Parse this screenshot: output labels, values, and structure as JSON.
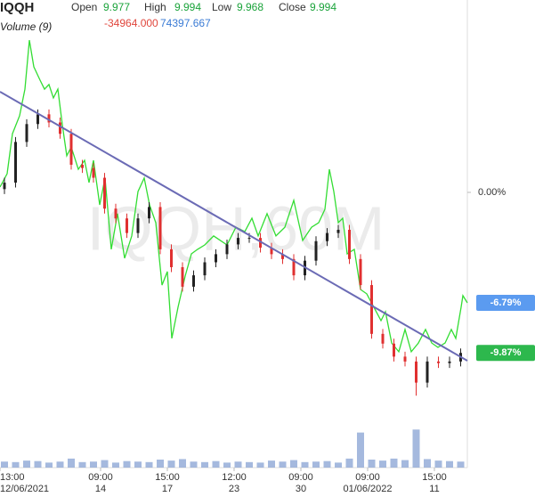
{
  "chart_data": {
    "type": "candlestick",
    "title": "IQQH",
    "watermark": "IQQH,60M",
    "ohlc_legend": [
      {
        "label": "Open",
        "value": 9.977
      },
      {
        "label": "High",
        "value": 9.994
      },
      {
        "label": "Low",
        "value": 9.968
      },
      {
        "label": "Close",
        "value": 9.994
      }
    ],
    "indicator": {
      "name": "Volume (9)",
      "values": [
        {
          "value": -34964,
          "label": "-34964.000"
        },
        74397.667
      ],
      "colors": [
        "#e0463c",
        "#3a7bd5"
      ]
    },
    "xlim": [
      0,
      105
    ],
    "xticks": [
      {
        "value": 0,
        "label": "13:00",
        "date": "12/06/2021"
      },
      {
        "value": 22.6,
        "label": "09:00",
        "date": "14"
      },
      {
        "value": 37.6,
        "label": "15:00",
        "date": "17"
      },
      {
        "value": 52.6,
        "label": "12:00",
        "date": "23"
      },
      {
        "value": 67.6,
        "label": "09:00",
        "date": "30"
      },
      {
        "value": 82.6,
        "label": "09:00",
        "date": "01/06/2022"
      },
      {
        "value": 97.6,
        "label": "15:00",
        "date": "11"
      }
    ],
    "ylim": [
      -14.46,
      11.83
    ],
    "yticks": [
      {
        "value": 0,
        "label": "0.00%"
      }
    ],
    "up_color": "#222222",
    "down_color": "#e03030",
    "candles": {
      "x": [
        1,
        3.5,
        6,
        8.5,
        11,
        13.5,
        16,
        18.5,
        21,
        23.5,
        26,
        28.5,
        31,
        33.5,
        36,
        38.5,
        41,
        43.5,
        46,
        48.5,
        51,
        53.5,
        56,
        58.5,
        61,
        63.5,
        66,
        68.5,
        71,
        73.5,
        76,
        78.5,
        81,
        83.5,
        86,
        88.5,
        91,
        93.5,
        96,
        98.5,
        101,
        103.5
      ],
      "open": [
        0.2,
        0.6,
        3.1,
        4.2,
        4.8,
        4.3,
        3.6,
        1.7,
        1.5,
        0.9,
        -1.0,
        -1.6,
        -2.5,
        -1.6,
        -0.9,
        -3.5,
        -4.6,
        -5.8,
        -5.1,
        -4.3,
        -3.8,
        -3.2,
        -2.8,
        -2.8,
        -3.4,
        -3.8,
        -4.1,
        -5.1,
        -4.2,
        -3.0,
        -2.5,
        -2.3,
        -4.1,
        -5.7,
        -8.7,
        -9.3,
        -10.1,
        -10.4,
        -11.7,
        -10.4,
        -10.5,
        -10.4
      ],
      "high": [
        0.9,
        3.4,
        4.5,
        5.1,
        5.1,
        4.6,
        3.9,
        2.0,
        1.8,
        1.2,
        -0.7,
        -1.3,
        -1.3,
        -0.6,
        -0.6,
        -3.2,
        -4.3,
        -4.8,
        -4.0,
        -3.5,
        -2.9,
        -2.5,
        -2.5,
        -2.5,
        -3.1,
        -3.5,
        -3.8,
        -3.9,
        -2.7,
        -2.2,
        -2.0,
        -2.0,
        -3.8,
        -5.4,
        -8.4,
        -9.0,
        -9.8,
        -10.1,
        -10.1,
        -10.1,
        -10.1,
        -9.6
      ],
      "low": [
        -0.1,
        0.3,
        2.8,
        3.9,
        4.0,
        3.3,
        1.4,
        1.2,
        0.6,
        -1.3,
        -1.9,
        -2.8,
        -2.8,
        -1.9,
        -3.8,
        -4.9,
        -6.1,
        -6.1,
        -5.4,
        -4.6,
        -4.1,
        -3.5,
        -3.1,
        -3.7,
        -4.1,
        -4.4,
        -5.4,
        -5.4,
        -4.5,
        -3.3,
        -2.8,
        -4.4,
        -6.0,
        -9.0,
        -9.6,
        -10.4,
        -10.7,
        -12.5,
        -12.0,
        -10.8,
        -10.8,
        -10.7
      ],
      "close": [
        0.6,
        3.1,
        4.2,
        4.8,
        4.3,
        3.6,
        1.7,
        1.5,
        0.9,
        -1.0,
        -1.6,
        -2.5,
        -1.6,
        -0.9,
        -3.5,
        -4.6,
        -5.8,
        -5.1,
        -4.3,
        -3.8,
        -3.2,
        -2.8,
        -2.8,
        -3.4,
        -3.8,
        -4.1,
        -5.1,
        -4.2,
        -3.0,
        -2.5,
        -2.3,
        -4.1,
        -5.7,
        -8.7,
        -9.3,
        -10.1,
        -10.4,
        -11.7,
        -10.4,
        -10.5,
        -10.4,
        -9.87
      ],
      "volume": [
        60000,
        55000,
        70000,
        65000,
        50000,
        60000,
        90000,
        55000,
        60000,
        75000,
        50000,
        65000,
        60000,
        55000,
        80000,
        70000,
        85000,
        60000,
        55000,
        65000,
        50000,
        60000,
        55000,
        50000,
        70000,
        60000,
        75000,
        55000,
        60000,
        65000,
        50000,
        90000,
        350000,
        80000,
        70000,
        90000,
        75000,
        380000,
        85000,
        70000,
        65000,
        60000
      ],
      "last_label": "-9.87%",
      "last_color": "#2db84d"
    },
    "vlim": [
      0,
      400000
    ],
    "volume_color": "#8fa7d6",
    "comparison": {
      "color": "#33dd33",
      "x": [
        0,
        1.6,
        2.8,
        4.4,
        5.6,
        6.6,
        7.6,
        9,
        10,
        11,
        12,
        13,
        14,
        15,
        16,
        17.6,
        19,
        20,
        21,
        22.4,
        23.6,
        25,
        26.4,
        28,
        29.6,
        31,
        32.4,
        33.6,
        35,
        36.4,
        37.6,
        38.6,
        40,
        41.6,
        43,
        44.4,
        46,
        48,
        51,
        53,
        55,
        56.6,
        58,
        60,
        62,
        64,
        66,
        68,
        70,
        71.6,
        73,
        74,
        75,
        76,
        77,
        78,
        79.6,
        81,
        82.4,
        84,
        85.6,
        86.6,
        88,
        89.6,
        91,
        92.4,
        94,
        95.6,
        97,
        98.4,
        100,
        101.4,
        102.4,
        103.6,
        104,
        105
      ],
      "values": [
        0.33,
        1.15,
        3.61,
        4.71,
        6.35,
        9.36,
        7.72,
        6.9,
        6.35,
        6.63,
        5.81,
        6.35,
        4.16,
        2.25,
        2.79,
        1.42,
        1.97,
        0.6,
        1.97,
        -0.77,
        0.88,
        -3.5,
        -1.31,
        -4.05,
        -2.68,
        0.05,
        0.88,
        -0.77,
        -1.86,
        -5.7,
        -4.87,
        -8.98,
        -7.06,
        -5.15,
        -3.78,
        -3.5,
        -3.23,
        -2.68,
        -3.23,
        -2.14,
        -2.41,
        -1.59,
        -2.68,
        -1.31,
        -2.68,
        -2.14,
        -0.49,
        -2.96,
        -2.14,
        -1.86,
        -1.04,
        1.42,
        0.05,
        -1.86,
        -1.59,
        -3.78,
        -3.5,
        -5.97,
        -6.24,
        -7.06,
        -7.89,
        -7.34,
        -9.26,
        -9.8,
        -8.43,
        -9.8,
        -9.26,
        -8.43,
        -9.26,
        -9.53,
        -9.26,
        -8.43,
        -8.98,
        -7.06,
        -6.35,
        -6.79
      ],
      "last_label": "-6.79%",
      "last_color": "#5b9bf0"
    },
    "trendline": {
      "color": "#6b6bb5",
      "x": [
        0,
        105
      ],
      "values": [
        6.19,
        -10.35
      ]
    }
  }
}
